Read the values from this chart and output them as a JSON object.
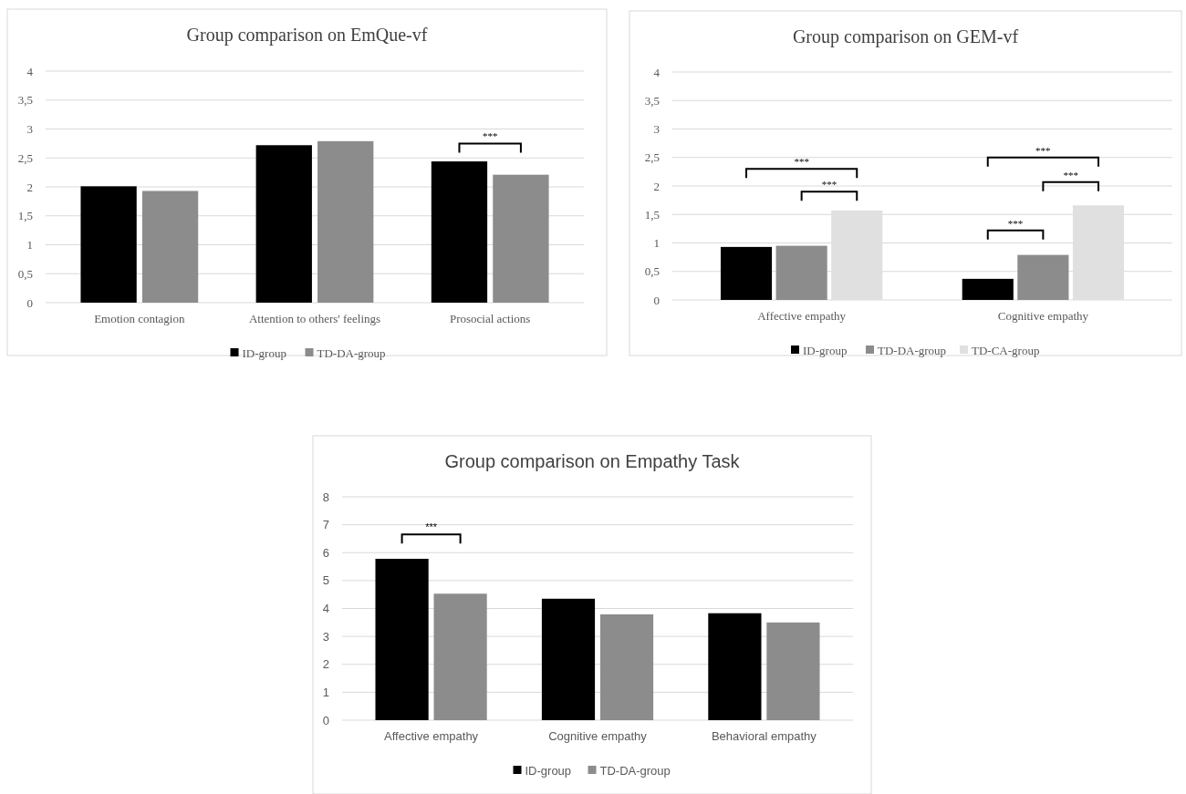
{
  "chart_data": [
    {
      "type": "bar",
      "title": "Group comparison on EmQue-vf",
      "categories": [
        "Emotion contagion",
        "Attention to others' feelings",
        "Prosocial actions"
      ],
      "series": [
        {
          "name": "ID-group",
          "color": "#000000",
          "values": [
            2.01,
            2.72,
            2.44
          ]
        },
        {
          "name": "TD-DA-group",
          "color": "#8c8c8c",
          "values": [
            1.93,
            2.79,
            2.21
          ]
        }
      ],
      "ylim": [
        0,
        4
      ],
      "yticks": [
        0,
        {
          "value": 0.5,
          "label": "0,5"
        },
        1,
        {
          "value": 1.5,
          "label": "1,5"
        },
        2,
        {
          "value": 2.5,
          "label": "2,5"
        },
        3,
        {
          "value": 3.5,
          "label": "3,5"
        },
        4
      ],
      "grid": "y",
      "legend": "bottom",
      "annotations": [
        "***"
      ]
    },
    {
      "type": "bar",
      "title": "Group comparison on GEM-vf",
      "categories": [
        "Affective empathy",
        "Cognitive empathy"
      ],
      "series": [
        {
          "name": "ID-group",
          "color": "#000000",
          "values": [
            0.93,
            0.37
          ]
        },
        {
          "name": "TD-DA-group",
          "color": "#8c8c8c",
          "values": [
            0.95,
            0.79
          ]
        },
        {
          "name": "TD-CA-group",
          "color": "#e0e0e0",
          "values": [
            1.57,
            1.66
          ]
        }
      ],
      "ylim": [
        0,
        4
      ],
      "yticks": [
        0,
        {
          "value": 0.5,
          "label": "0,5"
        },
        1,
        {
          "value": 1.5,
          "label": "1,5"
        },
        2,
        {
          "value": 2.5,
          "label": "2,5"
        },
        3,
        {
          "value": 3.5,
          "label": "3,5"
        },
        4
      ],
      "grid": "y",
      "legend": "bottom",
      "annotations": [
        "***",
        "***",
        "***",
        "***",
        "***"
      ]
    },
    {
      "type": "bar",
      "title": "Group comparison on Empathy Task",
      "categories": [
        "Affective empathy",
        "Cognitive empathy",
        "Behavioral empathy"
      ],
      "series": [
        {
          "name": "ID-group",
          "color": "#000000",
          "values": [
            5.78,
            4.35,
            3.83
          ]
        },
        {
          "name": "TD-DA-group",
          "color": "#8c8c8c",
          "values": [
            4.53,
            3.79,
            3.5
          ]
        }
      ],
      "ylim": [
        0,
        8
      ],
      "yticks": [
        0,
        1,
        2,
        3,
        4,
        5,
        6,
        7,
        8
      ],
      "grid": "y",
      "legend": "bottom",
      "annotations": [
        "***"
      ]
    }
  ]
}
